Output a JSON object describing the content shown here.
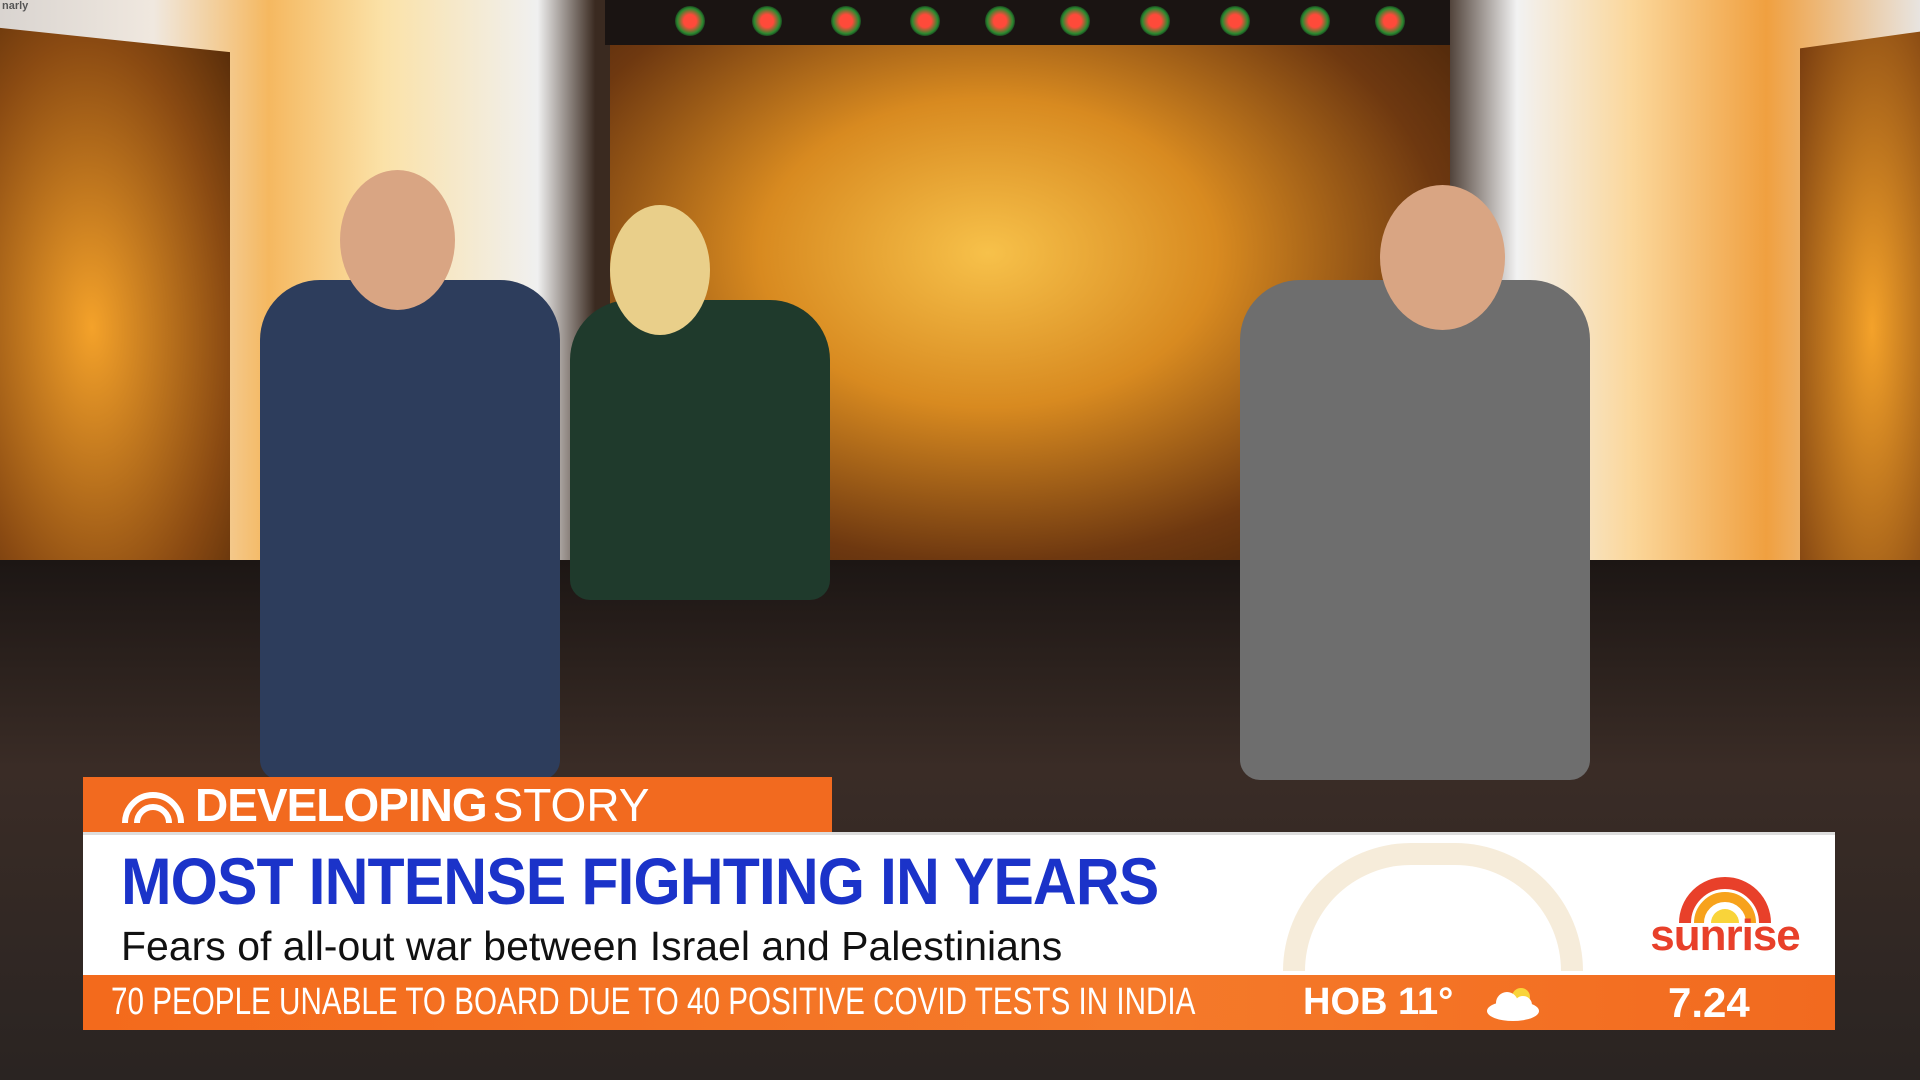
{
  "corner_text": "narly",
  "lower_third": {
    "tag_bold": "DEVELOPING",
    "tag_light": "STORY",
    "headline": "MOST INTENSE FIGHTING IN YEARS",
    "subheadline": "Fears of all-out war between Israel and Palestinians",
    "logo": "sunrise",
    "ticker": "70 PEOPLE UNABLE TO BOARD DUE TO 40 POSITIVE COVID TESTS IN INDIA",
    "weather_location": "HOB",
    "weather_temp": "11°",
    "weather_icon": "cloud-icon",
    "time": "7.24"
  },
  "colors": {
    "accent": "#f26a1f",
    "headline": "#1b33c9",
    "logo": "#e8402a"
  }
}
